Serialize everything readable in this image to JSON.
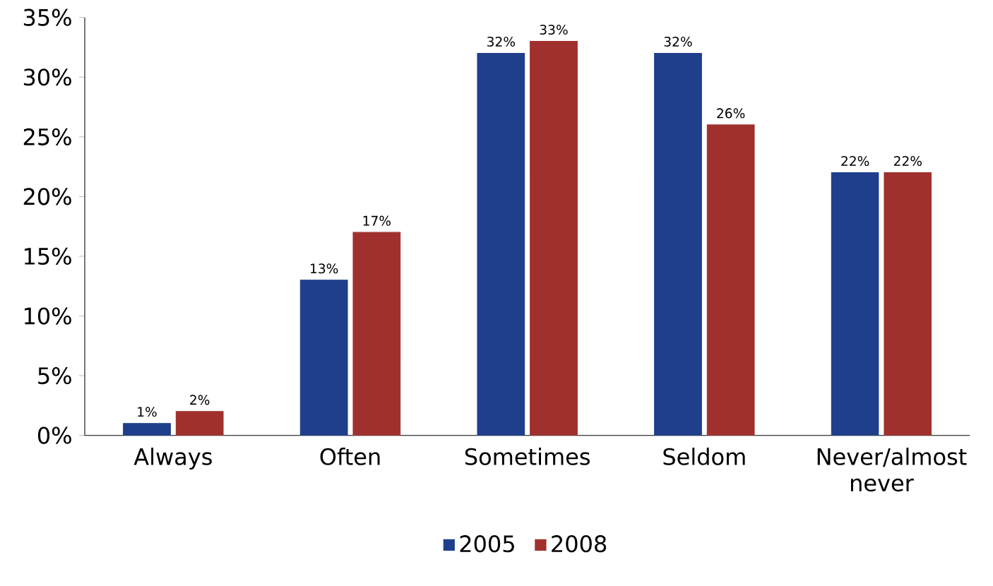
{
  "chart_data": {
    "type": "bar",
    "categories": [
      "Always",
      "Often",
      "Sometimes",
      "Seldom",
      "Never/almost never"
    ],
    "series": [
      {
        "name": "2005",
        "color": "#1f3f8c",
        "values": [
          1,
          13,
          32,
          32,
          22
        ],
        "value_labels": [
          "1%",
          "13%",
          "32%",
          "32%",
          "22%"
        ]
      },
      {
        "name": "2008",
        "color": "#a0302e",
        "values": [
          2,
          17,
          33,
          26,
          22
        ],
        "value_labels": [
          "2%",
          "17%",
          "33%",
          "26%",
          "22%"
        ]
      }
    ],
    "ylim": [
      0,
      35
    ],
    "yticks": [
      {
        "value": 0,
        "label": "0%"
      },
      {
        "value": 5,
        "label": "5%"
      },
      {
        "value": 10,
        "label": "10%"
      },
      {
        "value": 15,
        "label": "15%"
      },
      {
        "value": 20,
        "label": "20%"
      },
      {
        "value": 25,
        "label": "25%"
      },
      {
        "value": 30,
        "label": "30%"
      },
      {
        "value": 35,
        "label": "35%"
      }
    ],
    "grid": false,
    "legend": "bottom"
  }
}
